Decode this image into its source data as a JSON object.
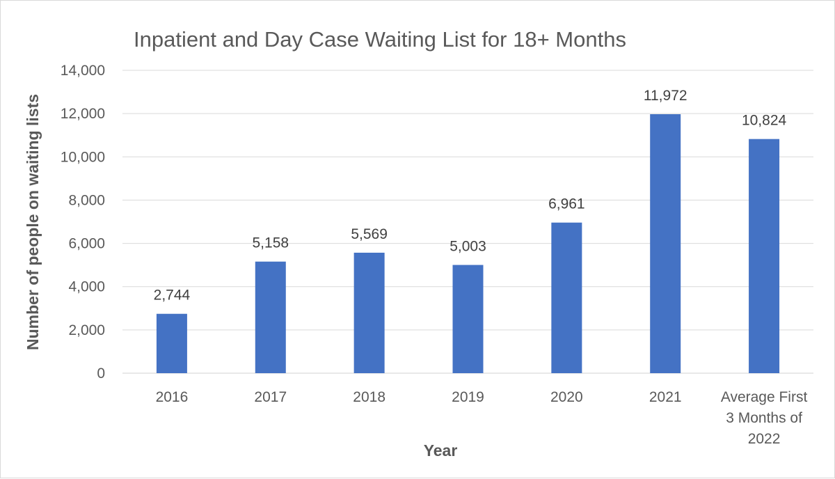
{
  "chart_data": {
    "type": "bar",
    "title": "Inpatient and Day Case Waiting List for 18+ Months",
    "xlabel": "Year",
    "ylabel": "Number of people on waiting lists",
    "categories": [
      [
        "2016"
      ],
      [
        "2017"
      ],
      [
        "2018"
      ],
      [
        "2019"
      ],
      [
        "2020"
      ],
      [
        "2021"
      ],
      [
        "Average First",
        "3 Months of",
        "2022"
      ]
    ],
    "values": [
      2744,
      5158,
      5569,
      5003,
      6961,
      11972,
      10824
    ],
    "value_labels": [
      "2,744",
      "5,158",
      "5,569",
      "5,003",
      "6,961",
      "11,972",
      "10,824"
    ],
    "ylim": [
      0,
      14000
    ],
    "yticks": [
      0,
      2000,
      4000,
      6000,
      8000,
      10000,
      12000,
      14000
    ],
    "ytick_labels": [
      "0",
      "2,000",
      "4,000",
      "6,000",
      "8,000",
      "10,000",
      "12,000",
      "14,000"
    ],
    "grid": true,
    "legend": "none",
    "bar_color": "#4472C4"
  }
}
